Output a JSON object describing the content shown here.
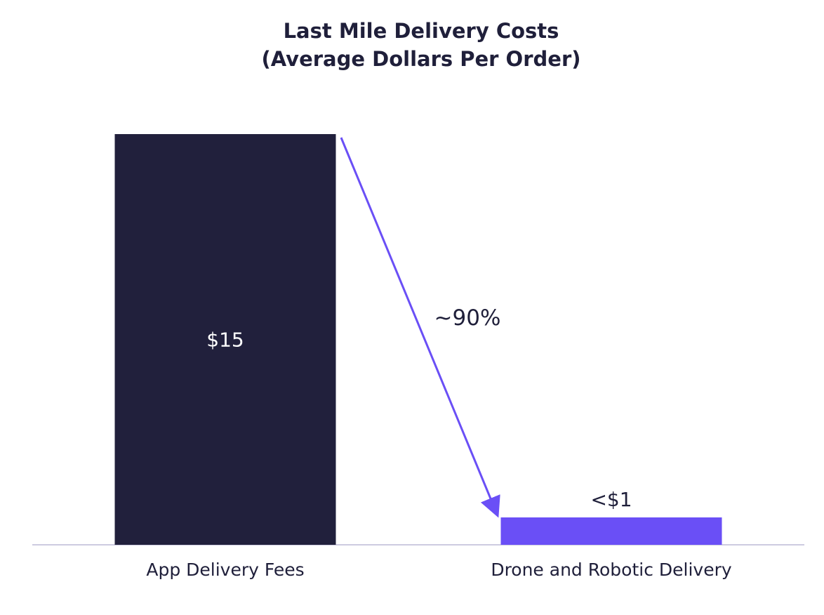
{
  "chart_data": {
    "type": "bar",
    "title": "Last Mile Delivery Costs",
    "subtitle": "(Average Dollars Per Order)",
    "categories": [
      "App Delivery Fees",
      "Drone and Robotic Delivery"
    ],
    "values": [
      15,
      1
    ],
    "data_labels": [
      "$15",
      "<$1"
    ],
    "bar_colors": [
      "#21203c",
      "#6a4ff6"
    ],
    "annotation": "~90%",
    "annotation_color": "#6a4ff6",
    "baseline_color": "#cdcbe0",
    "grid": false,
    "xlabel": "",
    "ylabel": ""
  }
}
